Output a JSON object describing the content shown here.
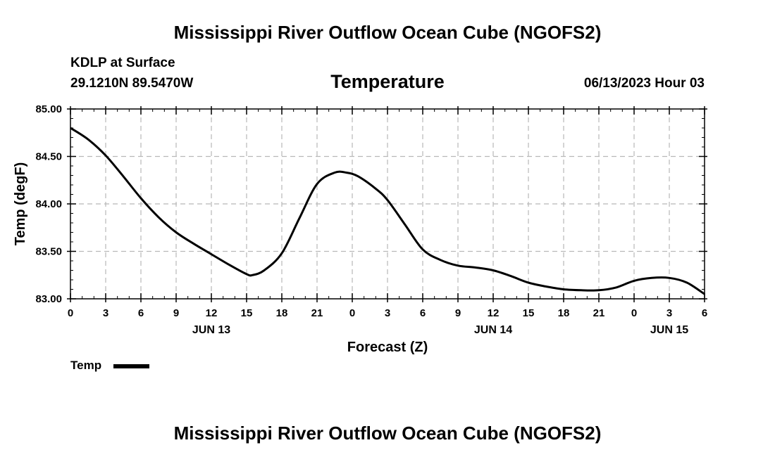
{
  "page": {
    "title": "Mississippi River Outflow Ocean Cube (NGOFS2)",
    "footer_title": "Mississippi River Outflow Ocean Cube (NGOFS2)"
  },
  "station": {
    "name": "KDLP at Surface",
    "coords": "29.1210N  89.5470W",
    "datetime": "06/13/2023 Hour 03"
  },
  "chart_data": {
    "type": "line",
    "title": "Temperature",
    "xlabel": "Forecast (Z)",
    "ylabel": "Temp (degF)",
    "x_unit": "forecast hour",
    "xlim": [
      0,
      54
    ],
    "ylim": [
      83.0,
      85.0
    ],
    "grid": true,
    "x_ticks": [
      0,
      3,
      6,
      9,
      12,
      15,
      18,
      21,
      24,
      27,
      30,
      33,
      36,
      39,
      42,
      45,
      48,
      51,
      54
    ],
    "x_tick_labels": [
      "0",
      "3",
      "6",
      "9",
      "12",
      "15",
      "18",
      "21",
      "0",
      "3",
      "6",
      "9",
      "12",
      "15",
      "18",
      "21",
      "0",
      "3",
      "6"
    ],
    "y_ticks": [
      83.0,
      83.5,
      84.0,
      84.5,
      85.0
    ],
    "y_tick_labels": [
      "83.00",
      "83.50",
      "84.00",
      "84.50",
      "85.00"
    ],
    "date_labels": [
      {
        "hour": 12,
        "label": "JUN 13"
      },
      {
        "hour": 36,
        "label": "JUN 14"
      },
      {
        "hour": 51,
        "label": "JUN 15"
      }
    ],
    "legend": {
      "label": "Temp",
      "placement": "bottom-left"
    },
    "series": [
      {
        "name": "Temp",
        "color": "#000000",
        "x": [
          0,
          1.5,
          3,
          4.5,
          6,
          7.5,
          9,
          10.5,
          12,
          13.5,
          15,
          15.5,
          16.5,
          18,
          19.5,
          21,
          22.5,
          23.5,
          24.5,
          26,
          27,
          28.5,
          30,
          31.5,
          33,
          34.5,
          36,
          37.5,
          39,
          40.5,
          42,
          43.5,
          45,
          46.5,
          48,
          49.5,
          51,
          52.5,
          54
        ],
        "values": [
          84.8,
          84.68,
          84.51,
          84.29,
          84.06,
          83.86,
          83.7,
          83.58,
          83.47,
          83.36,
          83.26,
          83.25,
          83.3,
          83.48,
          83.85,
          84.21,
          84.33,
          84.33,
          84.29,
          84.16,
          84.04,
          83.78,
          83.52,
          83.41,
          83.35,
          83.33,
          83.3,
          83.24,
          83.17,
          83.13,
          83.1,
          83.09,
          83.09,
          83.12,
          83.19,
          83.22,
          83.22,
          83.17,
          83.05
        ]
      }
    ]
  }
}
